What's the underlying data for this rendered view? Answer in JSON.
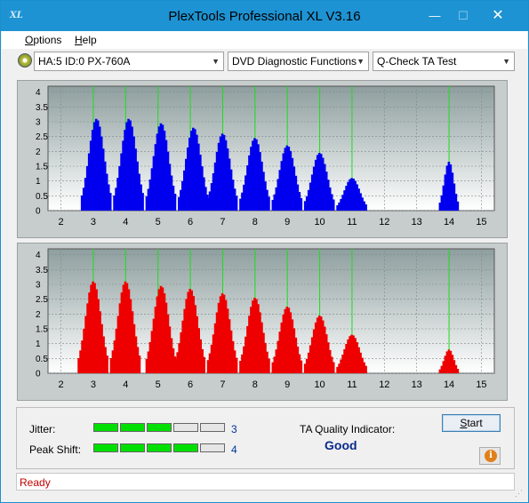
{
  "window": {
    "title": "PlexTools Professional XL V3.16",
    "icon_text": "XL"
  },
  "title_buttons": {
    "minimize": "—",
    "maximize": "☐",
    "close": "✕"
  },
  "menu": {
    "options": "Options",
    "options_key": "O",
    "options_rest": "ptions",
    "help_key": "H",
    "help_rest": "elp"
  },
  "toolbar": {
    "drive": "HA:5 ID:0  PX-760A",
    "function": "DVD Diagnostic Functions",
    "test": "Q-Check TA Test"
  },
  "chart_data": [
    {
      "type": "bar",
      "name": "top",
      "color": "#0000ee",
      "x_ticks": [
        "2",
        "3",
        "4",
        "5",
        "6",
        "7",
        "8",
        "9",
        "10",
        "11",
        "12",
        "13",
        "14",
        "15"
      ],
      "y_ticks": [
        "0",
        "0.5",
        "1",
        "1.5",
        "2",
        "2.5",
        "3",
        "3.5",
        "4"
      ],
      "xlim": [
        1.6,
        15.4
      ],
      "ylim": [
        0,
        4.2
      ],
      "green_lines": [
        3,
        4,
        5,
        6,
        7,
        8,
        9,
        10,
        11,
        14
      ],
      "peaks": [
        {
          "center": 3.1,
          "height": 3.1
        },
        {
          "center": 4.1,
          "height": 3.1
        },
        {
          "center": 5.1,
          "height": 2.95
        },
        {
          "center": 6.1,
          "height": 2.8
        },
        {
          "center": 7.0,
          "height": 2.6
        },
        {
          "center": 8.0,
          "height": 2.45
        },
        {
          "center": 9.0,
          "height": 2.2
        },
        {
          "center": 10.0,
          "height": 1.95
        },
        {
          "center": 11.0,
          "height": 1.1
        },
        {
          "center": 14.0,
          "height": 1.65
        }
      ]
    },
    {
      "type": "bar",
      "name": "bottom",
      "color": "#ee0000",
      "x_ticks": [
        "2",
        "3",
        "4",
        "5",
        "6",
        "7",
        "8",
        "9",
        "10",
        "11",
        "12",
        "13",
        "14",
        "15"
      ],
      "y_ticks": [
        "0",
        "0.5",
        "1",
        "1.5",
        "2",
        "2.5",
        "3",
        "3.5",
        "4"
      ],
      "xlim": [
        1.6,
        15.4
      ],
      "ylim": [
        0,
        4.2
      ],
      "green_lines": [
        3,
        4,
        5,
        6,
        7,
        8,
        9,
        10,
        11,
        14
      ],
      "peaks": [
        {
          "center": 3.0,
          "height": 3.1
        },
        {
          "center": 4.0,
          "height": 3.1
        },
        {
          "center": 5.1,
          "height": 2.95
        },
        {
          "center": 6.0,
          "height": 2.85
        },
        {
          "center": 7.0,
          "height": 2.7
        },
        {
          "center": 8.0,
          "height": 2.55
        },
        {
          "center": 9.0,
          "height": 2.25
        },
        {
          "center": 10.0,
          "height": 1.95
        },
        {
          "center": 11.0,
          "height": 1.3
        },
        {
          "center": 14.0,
          "height": 0.8
        }
      ]
    }
  ],
  "metrics": {
    "jitter_label": "Jitter:",
    "jitter_value": "3",
    "jitter_level": 3,
    "peak_label": "Peak Shift:",
    "peak_value": "4",
    "peak_level": 4,
    "segments": 5,
    "ta_label": "TA Quality Indicator:",
    "ta_value": "Good",
    "start_key": "S",
    "start_rest": "tart",
    "info_icon": "i"
  },
  "status": {
    "text": "Ready",
    "grip": "⋰"
  }
}
